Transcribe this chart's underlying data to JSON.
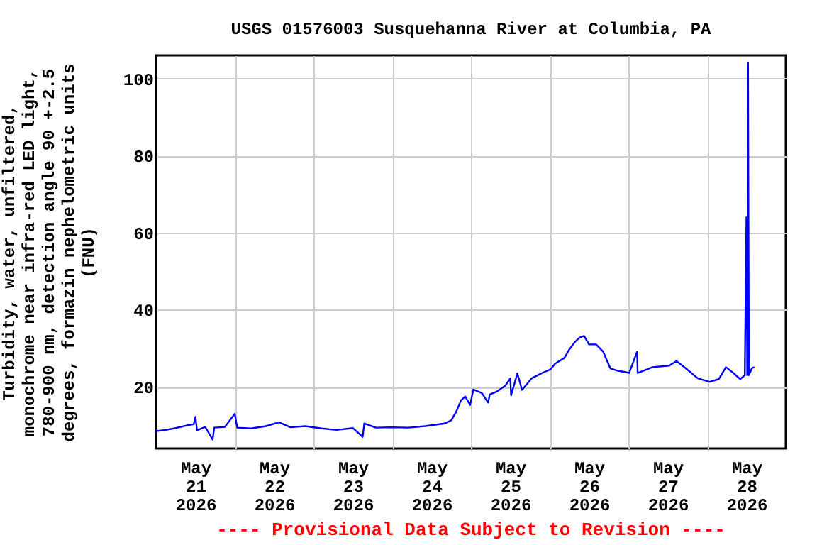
{
  "chart_data": {
    "type": "line",
    "title": "USGS 01576003 Susquehanna River at Columbia, PA",
    "ylabel": "Turbidity, water, unfiltered,\nmonochrome near infra-red LED light,\n780-900 nm, detection angle 90 +-2.5\ndegrees, formazin nephelometric units\n(FNU)",
    "annotations": [
      "---- Provisional Data Subject to Revision ----"
    ],
    "x": [
      "2026-05-21T00:00",
      "2026-05-21T03:00",
      "2026-05-21T06:00",
      "2026-05-21T09:30",
      "2026-05-21T11:30",
      "2026-05-21T12:00",
      "2026-05-21T12:30",
      "2026-05-21T15:00",
      "2026-05-21T17:15",
      "2026-05-21T17:45",
      "2026-05-21T21:00",
      "2026-05-22T00:00",
      "2026-05-22T00:45",
      "2026-05-22T05:00",
      "2026-05-22T09:30",
      "2026-05-22T13:30",
      "2026-05-22T17:00",
      "2026-05-22T21:30",
      "2026-05-23T02:30",
      "2026-05-23T07:00",
      "2026-05-23T12:00",
      "2026-05-23T15:00",
      "2026-05-23T15:30",
      "2026-05-23T19:00",
      "2026-05-24T00:00",
      "2026-05-24T05:00",
      "2026-05-24T10:00",
      "2026-05-24T16:00",
      "2026-05-24T18:00",
      "2026-05-24T19:30",
      "2026-05-24T21:00",
      "2026-05-24T22:15",
      "2026-05-24T23:45",
      "2026-05-25T00:45",
      "2026-05-25T03:20",
      "2026-05-25T05:15",
      "2026-05-25T05:45",
      "2026-05-25T07:45",
      "2026-05-25T10:30",
      "2026-05-25T12:00",
      "2026-05-25T12:15",
      "2026-05-25T14:10",
      "2026-05-25T15:35",
      "2026-05-25T18:30",
      "2026-05-25T22:00",
      "2026-05-26T00:15",
      "2026-05-26T01:40",
      "2026-05-26T04:30",
      "2026-05-26T06:00",
      "2026-05-26T07:40",
      "2026-05-26T09:10",
      "2026-05-26T10:30",
      "2026-05-26T12:00",
      "2026-05-26T14:10",
      "2026-05-26T16:20",
      "2026-05-26T18:30",
      "2026-05-26T20:40",
      "2026-05-27T00:15",
      "2026-05-27T02:40",
      "2026-05-27T02:50",
      "2026-05-27T07:25",
      "2026-05-27T12:30",
      "2026-05-27T14:40",
      "2026-05-27T17:30",
      "2026-05-27T21:10",
      "2026-05-28T00:45",
      "2026-05-28T03:35",
      "2026-05-28T05:45",
      "2026-05-28T08:00",
      "2026-05-28T10:05",
      "2026-05-28T11:30",
      "2026-05-28T12:00",
      "2026-05-28T12:15",
      "2026-05-28T12:30",
      "2026-05-28T12:45",
      "2026-05-28T13:40",
      "2026-05-28T14:25"
    ],
    "series": [
      {
        "color": "#0000ff",
        "values": [
          8.5,
          8.8,
          9.3,
          10.0,
          10.3,
          12.2,
          8.7,
          9.6,
          6.3,
          9.4,
          9.6,
          13.0,
          9.4,
          9.2,
          9.8,
          10.8,
          9.5,
          9.8,
          9.2,
          8.8,
          9.3,
          7.0,
          10.5,
          9.4,
          9.5,
          9.4,
          9.8,
          10.5,
          11.3,
          13.5,
          16.5,
          17.5,
          15.3,
          19.3,
          18.4,
          15.9,
          18.0,
          18.7,
          20.3,
          22.2,
          17.8,
          23.5,
          19.2,
          22.2,
          23.7,
          24.5,
          26.0,
          27.5,
          29.7,
          31.6,
          32.8,
          33.2,
          31.0,
          31.0,
          29.1,
          24.8,
          24.2,
          23.6,
          29.1,
          23.6,
          25.1,
          25.5,
          26.7,
          24.8,
          22.2,
          21.3,
          22.0,
          25.1,
          23.6,
          22.0,
          23.0,
          64,
          23.0,
          104,
          23.0,
          24.8,
          25.1
        ]
      }
    ],
    "xlim": [
      "2026-05-21T00:00",
      "2026-05-29T00:00"
    ],
    "xticks": [
      {
        "value": "2026-05-21T12:00",
        "label": "May\n21\n2026"
      },
      {
        "value": "2026-05-22T12:00",
        "label": "May\n22\n2026"
      },
      {
        "value": "2026-05-23T12:00",
        "label": "May\n23\n2026"
      },
      {
        "value": "2026-05-24T12:00",
        "label": "May\n24\n2026"
      },
      {
        "value": "2026-05-25T12:00",
        "label": "May\n25\n2026"
      },
      {
        "value": "2026-05-26T12:00",
        "label": "May\n26\n2026"
      },
      {
        "value": "2026-05-27T12:00",
        "label": "May\n27\n2026"
      },
      {
        "value": "2026-05-28T12:00",
        "label": "May\n28\n2026"
      },
      {
        "value": "2026-05-22T00:00",
        "label": null
      },
      {
        "value": "2026-05-23T00:00",
        "label": null
      },
      {
        "value": "2026-05-24T00:00",
        "label": null
      },
      {
        "value": "2026-05-25T00:00",
        "label": null
      },
      {
        "value": "2026-05-26T00:00",
        "label": null
      },
      {
        "value": "2026-05-27T00:00",
        "label": null
      },
      {
        "value": "2026-05-28T00:00",
        "label": null
      }
    ],
    "ylim": [
      4,
      106
    ],
    "yticks": [
      20,
      40,
      60,
      80,
      100
    ],
    "grid": true
  }
}
